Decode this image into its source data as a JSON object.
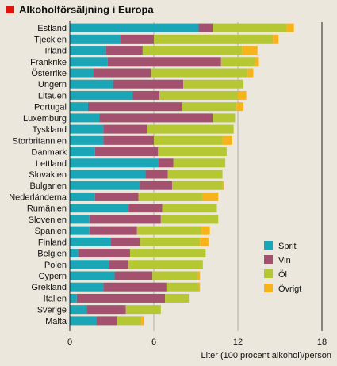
{
  "chart_data": {
    "type": "bar",
    "orientation": "horizontal",
    "stacked": true,
    "title": "Alkoholförsäljning i Europa",
    "xlabel": "Liter (100 procent alkohol)/person",
    "xlim": [
      0,
      18
    ],
    "xticks": [
      0,
      6,
      12,
      18
    ],
    "grid": true,
    "legend_position": "bottom-right",
    "highlight_category": "Sverige",
    "highlight_color": "#2aa3b6",
    "categories": [
      "Estland",
      "Tjeckien",
      "Irland",
      "Frankrike",
      "Österrike",
      "Ungern",
      "Litauen",
      "Portugal",
      "Luxemburg",
      "Tyskland",
      "Storbritannien",
      "Danmark",
      "Lettland",
      "Slovakien",
      "Bulgarien",
      "Nederländerna",
      "Rumänien",
      "Slovenien",
      "Spanien",
      "Finland",
      "Belgien",
      "Polen",
      "Cypern",
      "Grekland",
      "Italien",
      "Sverige",
      "Malta"
    ],
    "series": [
      {
        "name": "Sprit",
        "color": "#1aa6b7",
        "values": [
          9.2,
          3.6,
          2.6,
          2.7,
          1.7,
          3.1,
          4.5,
          1.3,
          2.1,
          2.4,
          2.4,
          1.8,
          6.3,
          5.4,
          5.0,
          1.8,
          4.2,
          1.4,
          1.4,
          2.9,
          0.6,
          2.8,
          3.2,
          2.4,
          0.5,
          1.2,
          1.9
        ]
      },
      {
        "name": "Vin",
        "color": "#a4506f",
        "values": [
          1.0,
          2.4,
          2.6,
          8.1,
          4.1,
          5.0,
          1.9,
          6.7,
          8.1,
          3.1,
          3.6,
          4.5,
          1.1,
          1.6,
          2.3,
          3.1,
          2.4,
          5.1,
          3.4,
          2.1,
          3.7,
          1.4,
          2.7,
          4.5,
          6.3,
          2.8,
          1.5
        ]
      },
      {
        "name": "Öl",
        "color": "#b5c733",
        "values": [
          5.3,
          8.5,
          7.1,
          2.4,
          6.9,
          4.3,
          5.6,
          3.9,
          1.6,
          6.2,
          4.9,
          4.9,
          3.7,
          3.9,
          3.6,
          4.6,
          3.9,
          4.1,
          4.6,
          4.3,
          5.4,
          5.3,
          3.2,
          2.3,
          1.7,
          2.5,
          1.7
        ]
      },
      {
        "name": "Övrigt",
        "color": "#f7b41a",
        "values": [
          0.5,
          0.4,
          1.1,
          0.3,
          0.4,
          0.0,
          0.6,
          0.5,
          0.0,
          0.0,
          0.7,
          0.0,
          0.0,
          0.0,
          0.1,
          1.1,
          0.0,
          0.0,
          0.6,
          0.6,
          0.0,
          0.0,
          0.2,
          0.1,
          0.0,
          0.0,
          0.2
        ]
      }
    ]
  }
}
